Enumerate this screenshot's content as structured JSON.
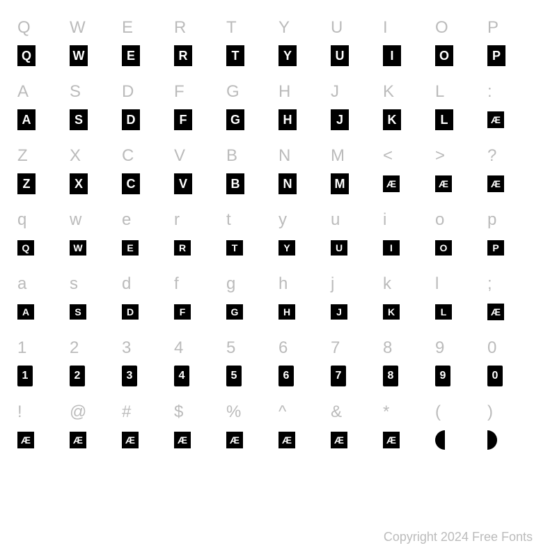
{
  "rows": [
    {
      "labels": [
        "Q",
        "W",
        "E",
        "R",
        "T",
        "Y",
        "U",
        "I",
        "O",
        "P"
      ],
      "glyphs": [
        "Q",
        "W",
        "E",
        "R",
        "T",
        "Y",
        "U",
        "I",
        "O",
        "P"
      ],
      "style": "big"
    },
    {
      "labels": [
        "A",
        "S",
        "D",
        "F",
        "G",
        "H",
        "J",
        "K",
        "L",
        ":"
      ],
      "glyphs": [
        "A",
        "S",
        "D",
        "F",
        "G",
        "H",
        "J",
        "K",
        "L",
        "Æ"
      ],
      "style": "big",
      "lastSq": true
    },
    {
      "labels": [
        "Z",
        "X",
        "C",
        "V",
        "B",
        "N",
        "M",
        "<",
        ">",
        "?"
      ],
      "glyphs": [
        "Z",
        "X",
        "C",
        "V",
        "B",
        "N",
        "M",
        "Æ",
        "Æ",
        "Æ"
      ],
      "style": "big",
      "sqFrom": 7
    },
    {
      "labels": [
        "q",
        "w",
        "e",
        "r",
        "t",
        "y",
        "u",
        "i",
        "o",
        "p"
      ],
      "glyphs": [
        "Q",
        "W",
        "E",
        "R",
        "T",
        "Y",
        "U",
        "I",
        "O",
        "P"
      ],
      "style": "small"
    },
    {
      "labels": [
        "a",
        "s",
        "d",
        "f",
        "g",
        "h",
        "j",
        "k",
        "l",
        ";"
      ],
      "glyphs": [
        "A",
        "S",
        "D",
        "F",
        "G",
        "H",
        "J",
        "K",
        "L",
        "Æ"
      ],
      "style": "small",
      "lastSq": true
    },
    {
      "labels": [
        "1",
        "2",
        "3",
        "4",
        "5",
        "6",
        "7",
        "8",
        "9",
        "0"
      ],
      "glyphs": [
        "1",
        "2",
        "3",
        "4",
        "5",
        "6",
        "7",
        "8",
        "9",
        "0"
      ],
      "style": "num"
    },
    {
      "labels": [
        "!",
        "@",
        "#",
        "$",
        "%",
        "^",
        "&",
        "*",
        "(",
        ")"
      ],
      "glyphs": [
        "Æ",
        "Æ",
        "Æ",
        "Æ",
        "Æ",
        "Æ",
        "Æ",
        "Æ",
        "",
        ""
      ],
      "style": "sq",
      "halfLeft": 8,
      "halfRight": 9
    }
  ],
  "copyright": "Copyright 2024 Free Fonts",
  "colors": {
    "background": "#ffffff",
    "label": "#bbbbbb",
    "glyphBg": "#000000",
    "glyphText": "#ffffff"
  }
}
